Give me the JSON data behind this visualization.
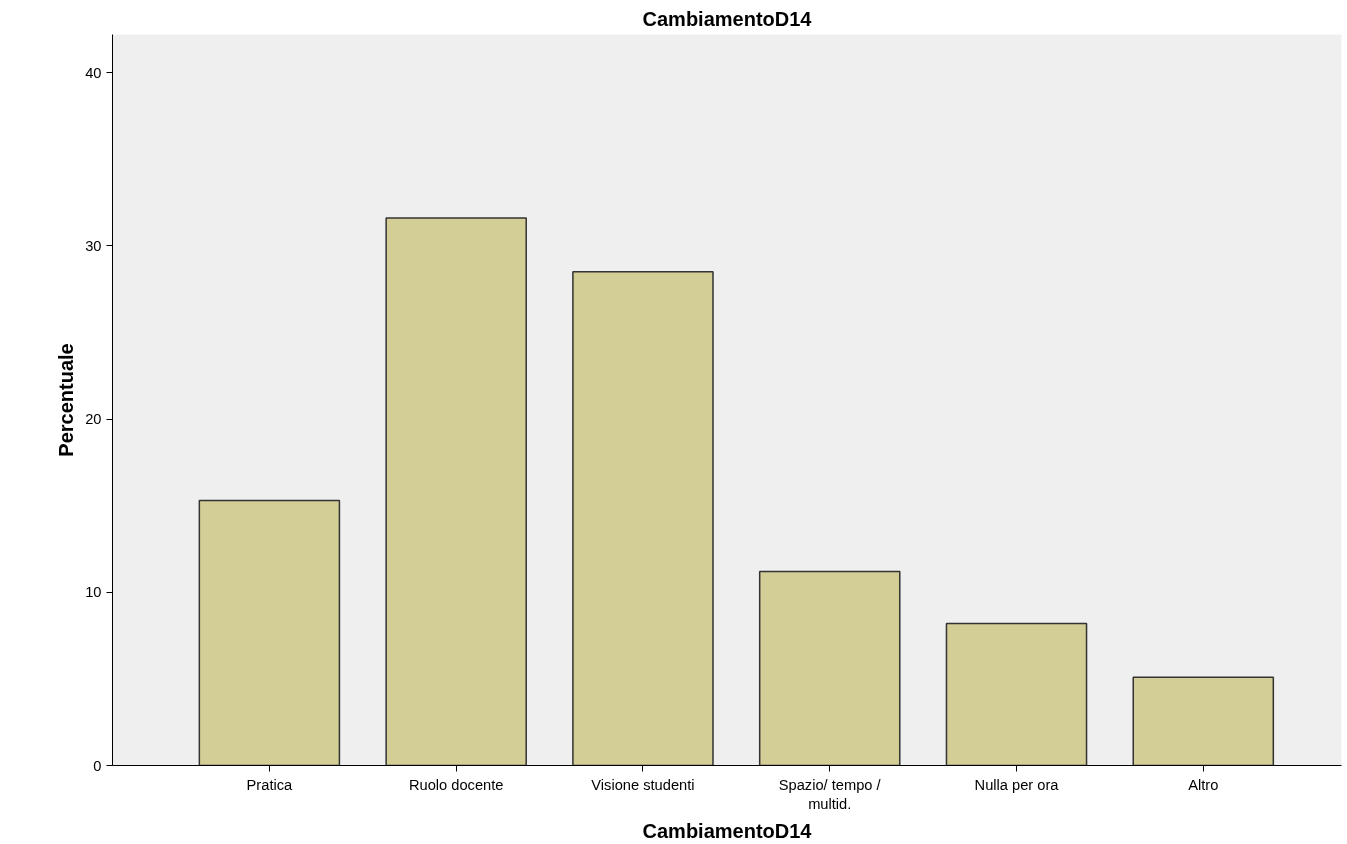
{
  "chart_data": {
    "type": "bar",
    "title": "CambiamentoD14",
    "xlabel": "CambiamentoD14",
    "ylabel": "Percentuale",
    "categories": [
      "Pratica",
      "Ruolo docente",
      "Visione studenti",
      "Spazio/ tempo /\nmultid.",
      "Nulla per ora",
      "Altro"
    ],
    "values": [
      15.3,
      31.6,
      28.5,
      11.2,
      8.2,
      5.1
    ],
    "color": "#d3cd96",
    "ylim": [
      0,
      42.2
    ],
    "yticks": [
      0,
      10,
      20,
      30,
      40
    ],
    "grid": false
  }
}
